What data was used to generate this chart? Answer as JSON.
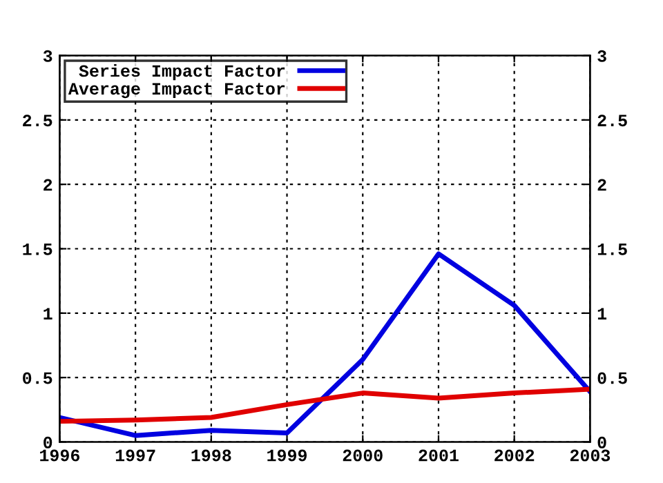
{
  "chart_data": {
    "type": "line",
    "x": [
      1996,
      1997,
      1998,
      1999,
      2000,
      2001,
      2002,
      2003
    ],
    "series": [
      {
        "name": "Series Impact Factor",
        "color": "#0000e0",
        "values": [
          0.19,
          0.05,
          0.09,
          0.07,
          0.64,
          1.46,
          1.06,
          0.39
        ]
      },
      {
        "name": "Average Impact Factor",
        "color": "#e00000",
        "values": [
          0.16,
          0.17,
          0.19,
          0.29,
          0.38,
          0.34,
          0.38,
          0.41
        ]
      }
    ],
    "xlim": [
      1996,
      2003
    ],
    "xticks": [
      1996,
      1997,
      1998,
      1999,
      2000,
      2001,
      2002,
      2003
    ],
    "ylim": [
      0,
      3
    ],
    "yticks": [
      0,
      0.5,
      1,
      1.5,
      2,
      2.5,
      3
    ],
    "y2lim": [
      0,
      3
    ],
    "y2ticks": [
      0,
      0.5,
      1,
      1.5,
      2,
      2.5,
      3
    ],
    "grid": true,
    "legend": "top left",
    "marker": "none",
    "line_style": "solid"
  }
}
